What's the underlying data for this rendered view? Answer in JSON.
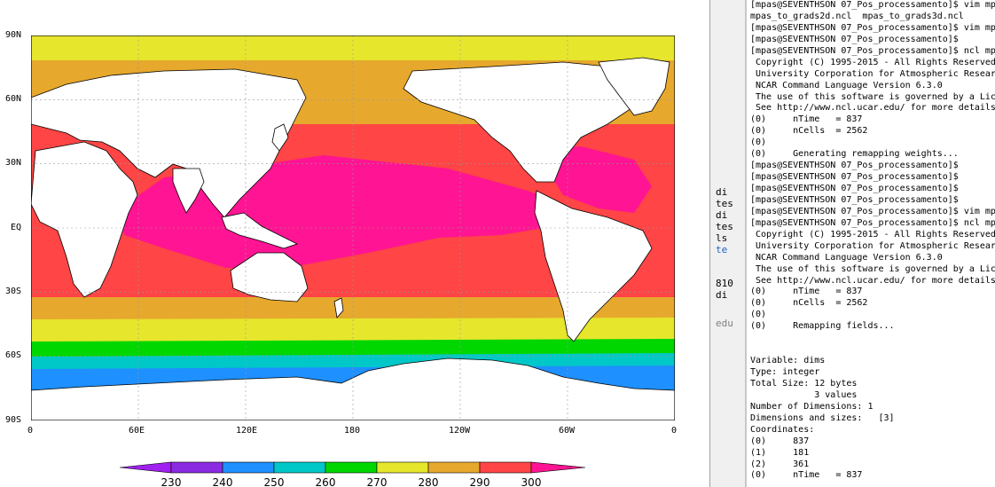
{
  "colors": {
    "c230": "#a020f0",
    "c240": "#8a2be2",
    "c250": "#1e90ff",
    "c260": "#00c8c8",
    "c270": "#00d700",
    "c280": "#e6e62d",
    "c290": "#e6a82d",
    "c300": "#ff4545",
    "c310": "#ff1493",
    "land": "#ffffff"
  },
  "map": {
    "lat_labels": [
      "90N",
      "60N",
      "30N",
      "EQ",
      "30S",
      "60S",
      "90S"
    ],
    "lon_labels": [
      "0",
      "60E",
      "120E",
      "180",
      "120W",
      "60W",
      "0"
    ]
  },
  "colorbar": {
    "labels": [
      "230",
      "240",
      "250",
      "260",
      "270",
      "280",
      "290",
      "300"
    ]
  },
  "background_window": {
    "fragments": [
      "di",
      "tes",
      "di",
      "tes",
      "ls",
      "te",
      "810",
      "di",
      "edu"
    ]
  },
  "terminal": {
    "lines": [
      "[mpas@SEVENTHSON 07_Pos_processamento]$ vim mp",
      "mpas_to_grads2d.ncl  mpas_to_grads3d.ncl",
      "[mpas@SEVENTHSON 07_Pos_processamento]$ vim mp",
      "[mpas@SEVENTHSON 07_Pos_processamento]$",
      "[mpas@SEVENTHSON 07_Pos_processamento]$ ncl mp",
      " Copyright (C) 1995-2015 - All Rights Reserved",
      " University Corporation for Atmospheric Resear",
      " NCAR Command Language Version 6.3.0",
      " The use of this software is governed by a Lic",
      " See http://www.ncl.ucar.edu/ for more details",
      "(0)     nTime   = 837",
      "(0)     nCells  = 2562",
      "(0)",
      "(0)     Generating remapping weights...",
      "[mpas@SEVENTHSON 07_Pos_processamento]$",
      "[mpas@SEVENTHSON 07_Pos_processamento]$",
      "[mpas@SEVENTHSON 07_Pos_processamento]$",
      "[mpas@SEVENTHSON 07_Pos_processamento]$",
      "[mpas@SEVENTHSON 07_Pos_processamento]$ vim mp",
      "[mpas@SEVENTHSON 07_Pos_processamento]$ ncl mp",
      " Copyright (C) 1995-2015 - All Rights Reserved",
      " University Corporation for Atmospheric Resear",
      " NCAR Command Language Version 6.3.0",
      " The use of this software is governed by a Lic",
      " See http://www.ncl.ucar.edu/ for more details",
      "(0)     nTime   = 837",
      "(0)     nCells  = 2562",
      "(0)",
      "(0)     Remapping fields...",
      "",
      "",
      "Variable: dims",
      "Type: integer",
      "Total Size: 12 bytes",
      "            3 values",
      "Number of Dimensions: 1",
      "Dimensions and sizes:   [3]",
      "Coordinates:",
      "(0)     837",
      "(1)     181",
      "(2)     361",
      "(0)     nTime   = 837"
    ]
  }
}
